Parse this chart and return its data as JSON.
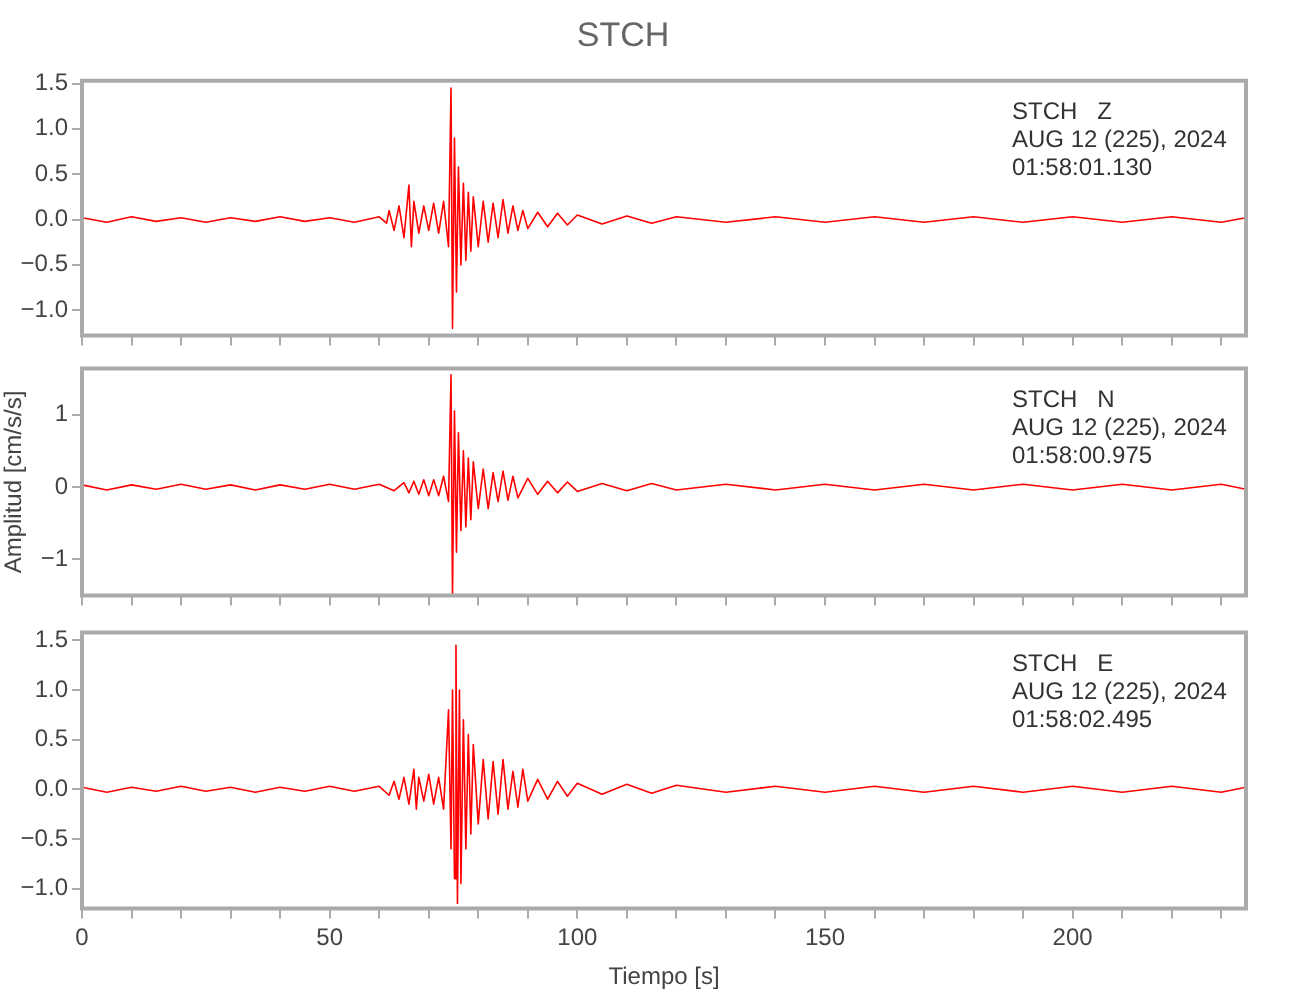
{
  "chart_data": [
    {
      "type": "line",
      "title": "STCH",
      "color": "#ff0000",
      "tick_labels": "y",
      "annotations": [
        "STCH   Z",
        "AUG 12 (225), 2024",
        "01:58:01.130"
      ],
      "x": [
        0,
        5,
        10,
        15,
        20,
        25,
        30,
        35,
        40,
        45,
        50,
        55,
        60,
        61.5,
        62,
        63,
        64,
        65,
        66,
        66.5,
        67,
        68,
        69,
        70,
        71,
        72,
        73,
        74,
        74.5,
        74.8,
        75.2,
        75.6,
        76,
        76.5,
        77,
        77.5,
        78,
        78.5,
        79,
        80,
        81,
        82,
        83,
        84,
        85,
        86,
        87,
        88,
        89,
        90,
        92,
        94,
        96,
        98,
        100,
        105,
        110,
        115,
        120,
        130,
        140,
        150,
        160,
        170,
        180,
        190,
        200,
        210,
        220,
        230,
        235
      ],
      "values": [
        0.02,
        -0.03,
        0.03,
        -0.02,
        0.02,
        -0.03,
        0.02,
        -0.02,
        0.03,
        -0.02,
        0.02,
        -0.03,
        0.03,
        -0.04,
        0.1,
        -0.12,
        0.15,
        -0.2,
        0.38,
        -0.3,
        0.2,
        -0.15,
        0.15,
        -0.12,
        0.18,
        -0.15,
        0.2,
        -0.3,
        1.45,
        -1.2,
        0.9,
        -0.8,
        0.58,
        -0.5,
        0.4,
        -0.45,
        0.3,
        -0.35,
        0.25,
        -0.3,
        0.2,
        -0.25,
        0.18,
        -0.2,
        0.22,
        -0.15,
        0.15,
        -0.12,
        0.1,
        -0.1,
        0.08,
        -0.08,
        0.07,
        -0.06,
        0.05,
        -0.05,
        0.04,
        -0.04,
        0.03,
        -0.03,
        0.03,
        -0.03,
        0.03,
        -0.03,
        0.03,
        -0.03,
        0.03,
        -0.03,
        0.03,
        -0.03,
        0.02
      ],
      "xlim": [
        0,
        235
      ],
      "xticks": [
        {
          "value": 0,
          "label": null
        },
        {
          "value": 10,
          "label": null
        },
        {
          "value": 20,
          "label": null
        },
        {
          "value": 30,
          "label": null
        },
        {
          "value": 40,
          "label": null
        },
        {
          "value": 50,
          "label": null
        },
        {
          "value": 60,
          "label": null
        },
        {
          "value": 70,
          "label": null
        },
        {
          "value": 80,
          "label": null
        },
        {
          "value": 90,
          "label": null
        },
        {
          "value": 100,
          "label": null
        },
        {
          "value": 110,
          "label": null
        },
        {
          "value": 120,
          "label": null
        },
        {
          "value": 130,
          "label": null
        },
        {
          "value": 140,
          "label": null
        },
        {
          "value": 150,
          "label": null
        },
        {
          "value": 160,
          "label": null
        },
        {
          "value": 170,
          "label": null
        },
        {
          "value": 180,
          "label": null
        },
        {
          "value": 190,
          "label": null
        },
        {
          "value": 200,
          "label": null
        },
        {
          "value": 210,
          "label": null
        },
        {
          "value": 220,
          "label": null
        },
        {
          "value": 230,
          "label": null
        }
      ],
      "ylim": [
        -1.28,
        1.53
      ],
      "yticks": [
        {
          "value": -1,
          "label": "−1.0"
        },
        {
          "value": -0.5,
          "label": "−0.5"
        },
        {
          "value": 0,
          "label": "0.0"
        },
        {
          "value": 0.5,
          "label": "0.5"
        },
        {
          "value": 1,
          "label": "1.0"
        },
        {
          "value": 1.5,
          "label": "1.5"
        }
      ]
    },
    {
      "type": "line",
      "ylabel": "Amplitud [cm/s/s]",
      "color": "#ff0000",
      "tick_labels": "y",
      "annotations": [
        "STCH   N",
        "AUG 12 (225), 2024",
        "01:58:00.975"
      ],
      "x": [
        0,
        5,
        10,
        15,
        20,
        25,
        30,
        35,
        40,
        45,
        50,
        55,
        60,
        63,
        65,
        66,
        67,
        68,
        69,
        70,
        71,
        72,
        73,
        74,
        74.5,
        74.8,
        75.2,
        75.6,
        76,
        76.5,
        77,
        77.5,
        78,
        78.5,
        79,
        80,
        81,
        82,
        83,
        84,
        85,
        86,
        87,
        88,
        90,
        92,
        94,
        96,
        98,
        100,
        105,
        110,
        115,
        120,
        130,
        140,
        150,
        160,
        170,
        180,
        190,
        200,
        210,
        220,
        230,
        235
      ],
      "values": [
        0.03,
        -0.04,
        0.03,
        -0.03,
        0.04,
        -0.03,
        0.03,
        -0.04,
        0.03,
        -0.03,
        0.04,
        -0.03,
        0.04,
        -0.05,
        0.06,
        -0.08,
        0.08,
        -0.1,
        0.1,
        -0.12,
        0.1,
        -0.12,
        0.15,
        -0.2,
        1.55,
        -1.5,
        1.05,
        -0.9,
        0.75,
        -0.6,
        0.5,
        -0.55,
        0.4,
        -0.45,
        0.35,
        -0.3,
        0.25,
        -0.3,
        0.2,
        -0.2,
        0.22,
        -0.18,
        0.15,
        -0.15,
        0.12,
        -0.1,
        0.08,
        -0.08,
        0.07,
        -0.06,
        0.05,
        -0.05,
        0.05,
        -0.04,
        0.04,
        -0.04,
        0.04,
        -0.04,
        0.04,
        -0.04,
        0.04,
        -0.04,
        0.04,
        -0.04,
        0.04,
        -0.03
      ],
      "xlim": [
        0,
        235
      ],
      "xticks": [
        {
          "value": 0,
          "label": null
        },
        {
          "value": 10,
          "label": null
        },
        {
          "value": 20,
          "label": null
        },
        {
          "value": 30,
          "label": null
        },
        {
          "value": 40,
          "label": null
        },
        {
          "value": 50,
          "label": null
        },
        {
          "value": 60,
          "label": null
        },
        {
          "value": 70,
          "label": null
        },
        {
          "value": 80,
          "label": null
        },
        {
          "value": 90,
          "label": null
        },
        {
          "value": 100,
          "label": null
        },
        {
          "value": 110,
          "label": null
        },
        {
          "value": 120,
          "label": null
        },
        {
          "value": 130,
          "label": null
        },
        {
          "value": 140,
          "label": null
        },
        {
          "value": 150,
          "label": null
        },
        {
          "value": 160,
          "label": null
        },
        {
          "value": 170,
          "label": null
        },
        {
          "value": 180,
          "label": null
        },
        {
          "value": 190,
          "label": null
        },
        {
          "value": 200,
          "label": null
        },
        {
          "value": 210,
          "label": null
        },
        {
          "value": 220,
          "label": null
        },
        {
          "value": 230,
          "label": null
        }
      ],
      "ylim": [
        -1.5,
        1.64
      ],
      "yticks": [
        {
          "value": -1,
          "label": "−1"
        },
        0,
        1
      ]
    },
    {
      "type": "line",
      "xlabel": "Tiempo [s]",
      "color": "#ff0000",
      "annotations": [
        "STCH   E",
        "AUG 12 (225), 2024",
        "01:58:02.495"
      ],
      "x": [
        0,
        5,
        10,
        15,
        20,
        25,
        30,
        35,
        40,
        45,
        50,
        55,
        60,
        62,
        63,
        64,
        65,
        66,
        67,
        67.5,
        68,
        69,
        70,
        71,
        72,
        73,
        74,
        74.5,
        74.8,
        75.2,
        75.5,
        75.8,
        76.2,
        76.5,
        77,
        77.5,
        78,
        78.5,
        79,
        80,
        81,
        82,
        83,
        84,
        85,
        86,
        87,
        88,
        89,
        90,
        92,
        94,
        96,
        98,
        100,
        105,
        110,
        115,
        120,
        130,
        140,
        150,
        160,
        170,
        180,
        190,
        200,
        210,
        220,
        230,
        235
      ],
      "values": [
        0.02,
        -0.03,
        0.02,
        -0.02,
        0.03,
        -0.02,
        0.02,
        -0.03,
        0.02,
        -0.02,
        0.03,
        -0.02,
        0.03,
        -0.06,
        0.08,
        -0.1,
        0.12,
        -0.15,
        0.2,
        -0.2,
        0.12,
        -0.12,
        0.15,
        -0.15,
        0.12,
        -0.2,
        0.8,
        -0.6,
        1.0,
        -0.9,
        1.45,
        -1.15,
        1.0,
        -0.95,
        0.7,
        -0.6,
        0.55,
        -0.45,
        0.45,
        -0.35,
        0.3,
        -0.3,
        0.28,
        -0.25,
        0.3,
        -0.2,
        0.18,
        -0.18,
        0.2,
        -0.12,
        0.1,
        -0.1,
        0.08,
        -0.07,
        0.06,
        -0.05,
        0.05,
        -0.04,
        0.04,
        -0.03,
        0.03,
        -0.03,
        0.03,
        -0.03,
        0.03,
        -0.03,
        0.03,
        -0.03,
        0.03,
        -0.03,
        0.02
      ],
      "xlim": [
        0,
        235
      ],
      "xticks": [
        0,
        {
          "value": 10,
          "label": null
        },
        {
          "value": 20,
          "label": null
        },
        {
          "value": 30,
          "label": null
        },
        {
          "value": 40,
          "label": null
        },
        50,
        {
          "value": 60,
          "label": null
        },
        {
          "value": 70,
          "label": null
        },
        {
          "value": 80,
          "label": null
        },
        {
          "value": 90,
          "label": null
        },
        100,
        {
          "value": 110,
          "label": null
        },
        {
          "value": 120,
          "label": null
        },
        {
          "value": 130,
          "label": null
        },
        {
          "value": 140,
          "label": null
        },
        150,
        {
          "value": 160,
          "label": null
        },
        {
          "value": 170,
          "label": null
        },
        {
          "value": 180,
          "label": null
        },
        {
          "value": 190,
          "label": null
        },
        200,
        {
          "value": 210,
          "label": null
        },
        {
          "value": 220,
          "label": null
        },
        {
          "value": 230,
          "label": null
        }
      ],
      "ylim": [
        -1.2,
        1.58
      ],
      "yticks": [
        {
          "value": -1,
          "label": "−1.0"
        },
        {
          "value": -0.5,
          "label": "−0.5"
        },
        {
          "value": 0,
          "label": "0.0"
        },
        {
          "value": 0.5,
          "label": "0.5"
        },
        {
          "value": 1,
          "label": "1.0"
        },
        {
          "value": 1.5,
          "label": "1.5"
        }
      ]
    }
  ]
}
